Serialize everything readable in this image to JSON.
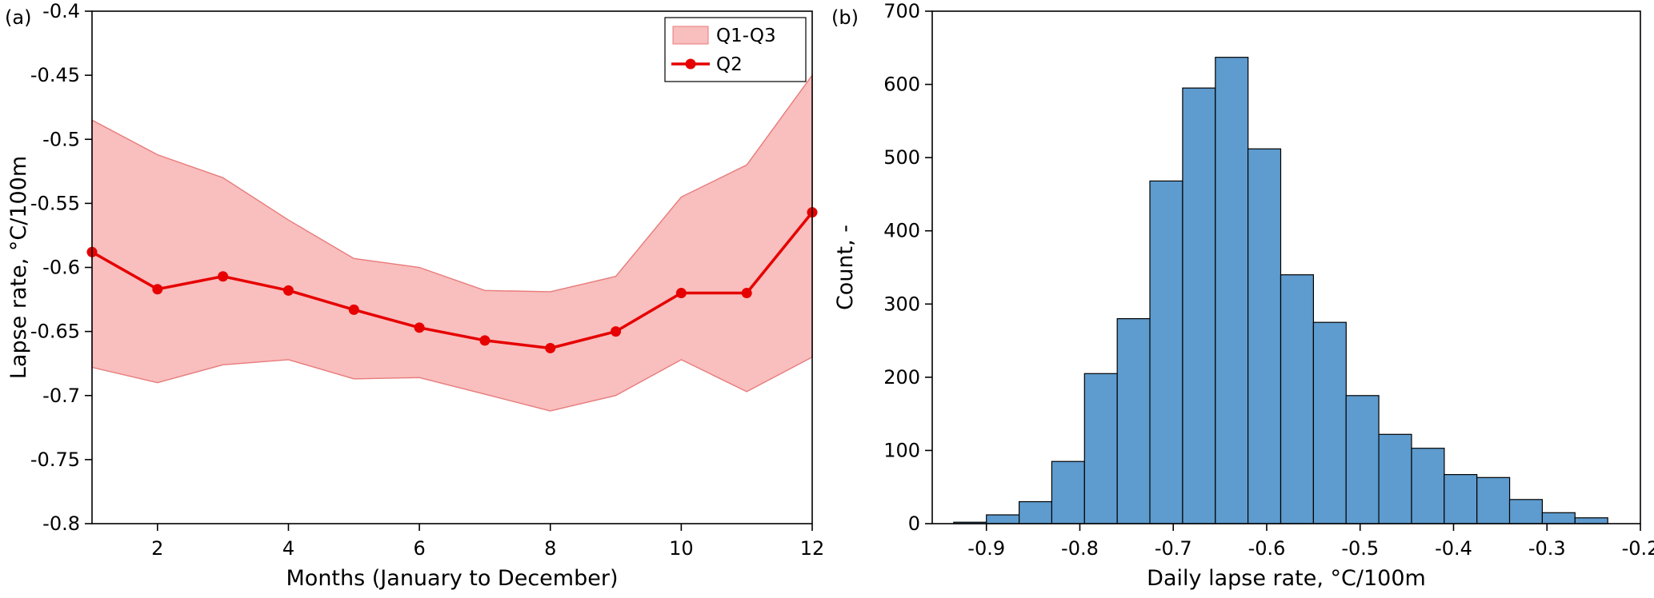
{
  "figure": {
    "background": "#ffffff",
    "panels": [
      {
        "id": "a",
        "label": "(a)",
        "chart_data": {
          "type": "line",
          "title": "",
          "xlabel": "Months (January to December)",
          "ylabel": "Lapse rate, °C/100m",
          "xlim": [
            1,
            12
          ],
          "ylim": [
            -0.8,
            -0.4
          ],
          "grid": false,
          "xtick_values": [
            2,
            4,
            6,
            8,
            10,
            12
          ],
          "xtick_labels": [
            "2",
            "4",
            "6",
            "8",
            "10",
            "12"
          ],
          "ytick_values": [
            -0.4,
            -0.45,
            -0.5,
            -0.55,
            -0.6,
            -0.65,
            -0.7,
            -0.75,
            -0.8
          ],
          "ytick_labels": [
            "-0.4",
            "-0.45",
            "-0.5",
            "-0.55",
            "-0.6",
            "-0.65",
            "-0.7",
            "-0.75",
            "-0.8"
          ],
          "x": [
            1,
            2,
            3,
            4,
            5,
            6,
            7,
            8,
            9,
            10,
            11,
            12
          ],
          "series": [
            {
              "name": "Q2",
              "role": "median-line",
              "color": "#e60000",
              "values": [
                -0.588,
                -0.617,
                -0.607,
                -0.618,
                -0.633,
                -0.647,
                -0.657,
                -0.663,
                -0.65,
                -0.62,
                -0.62,
                -0.557
              ]
            },
            {
              "name": "Q1",
              "role": "band-upper-edge",
              "values": [
                -0.485,
                -0.512,
                -0.53,
                -0.563,
                -0.593,
                -0.6,
                -0.618,
                -0.619,
                -0.607,
                -0.545,
                -0.52,
                -0.45
              ]
            },
            {
              "name": "Q3",
              "role": "band-lower-edge",
              "values": [
                -0.678,
                -0.69,
                -0.676,
                -0.672,
                -0.687,
                -0.686,
                -0.699,
                -0.712,
                -0.7,
                -0.672,
                -0.697,
                -0.67
              ]
            }
          ],
          "band": {
            "label": "Q1-Q3",
            "fill": "#f9bebe",
            "edge": "#e87b7b"
          },
          "legend": {
            "entries": [
              "Q1-Q3",
              "Q2"
            ],
            "position": "upper right"
          }
        }
      },
      {
        "id": "b",
        "label": "(b)",
        "chart_data": {
          "type": "bar",
          "subtype": "histogram",
          "title": "",
          "xlabel": "Daily lapse rate, °C/100m",
          "ylabel": "Count, -",
          "xlim": [
            -0.958,
            -0.2
          ],
          "ylim": [
            0,
            700
          ],
          "grid": false,
          "xtick_values": [
            -0.9,
            -0.8,
            -0.7,
            -0.6,
            -0.5,
            -0.4,
            -0.3,
            -0.2
          ],
          "xtick_labels": [
            "-0.9",
            "-0.8",
            "-0.7",
            "-0.6",
            "-0.5",
            "-0.4",
            "-0.3",
            "-0.2"
          ],
          "ytick_values": [
            0,
            100,
            200,
            300,
            400,
            500,
            600,
            700
          ],
          "ytick_labels": [
            "0",
            "100",
            "200",
            "300",
            "400",
            "500",
            "600",
            "700"
          ],
          "bin_edges": [
            -0.935,
            -0.9,
            -0.865,
            -0.83,
            -0.795,
            -0.76,
            -0.725,
            -0.69,
            -0.655,
            -0.62,
            -0.585,
            -0.55,
            -0.515,
            -0.48,
            -0.445,
            -0.41,
            -0.375,
            -0.34,
            -0.305,
            -0.27,
            -0.235
          ],
          "counts": [
            2,
            12,
            30,
            85,
            205,
            280,
            468,
            595,
            637,
            512,
            340,
            275,
            175,
            122,
            103,
            67,
            63,
            33,
            15,
            8
          ],
          "bar_fill": "#5e9bce",
          "bar_edge": "#000000"
        }
      }
    ]
  }
}
